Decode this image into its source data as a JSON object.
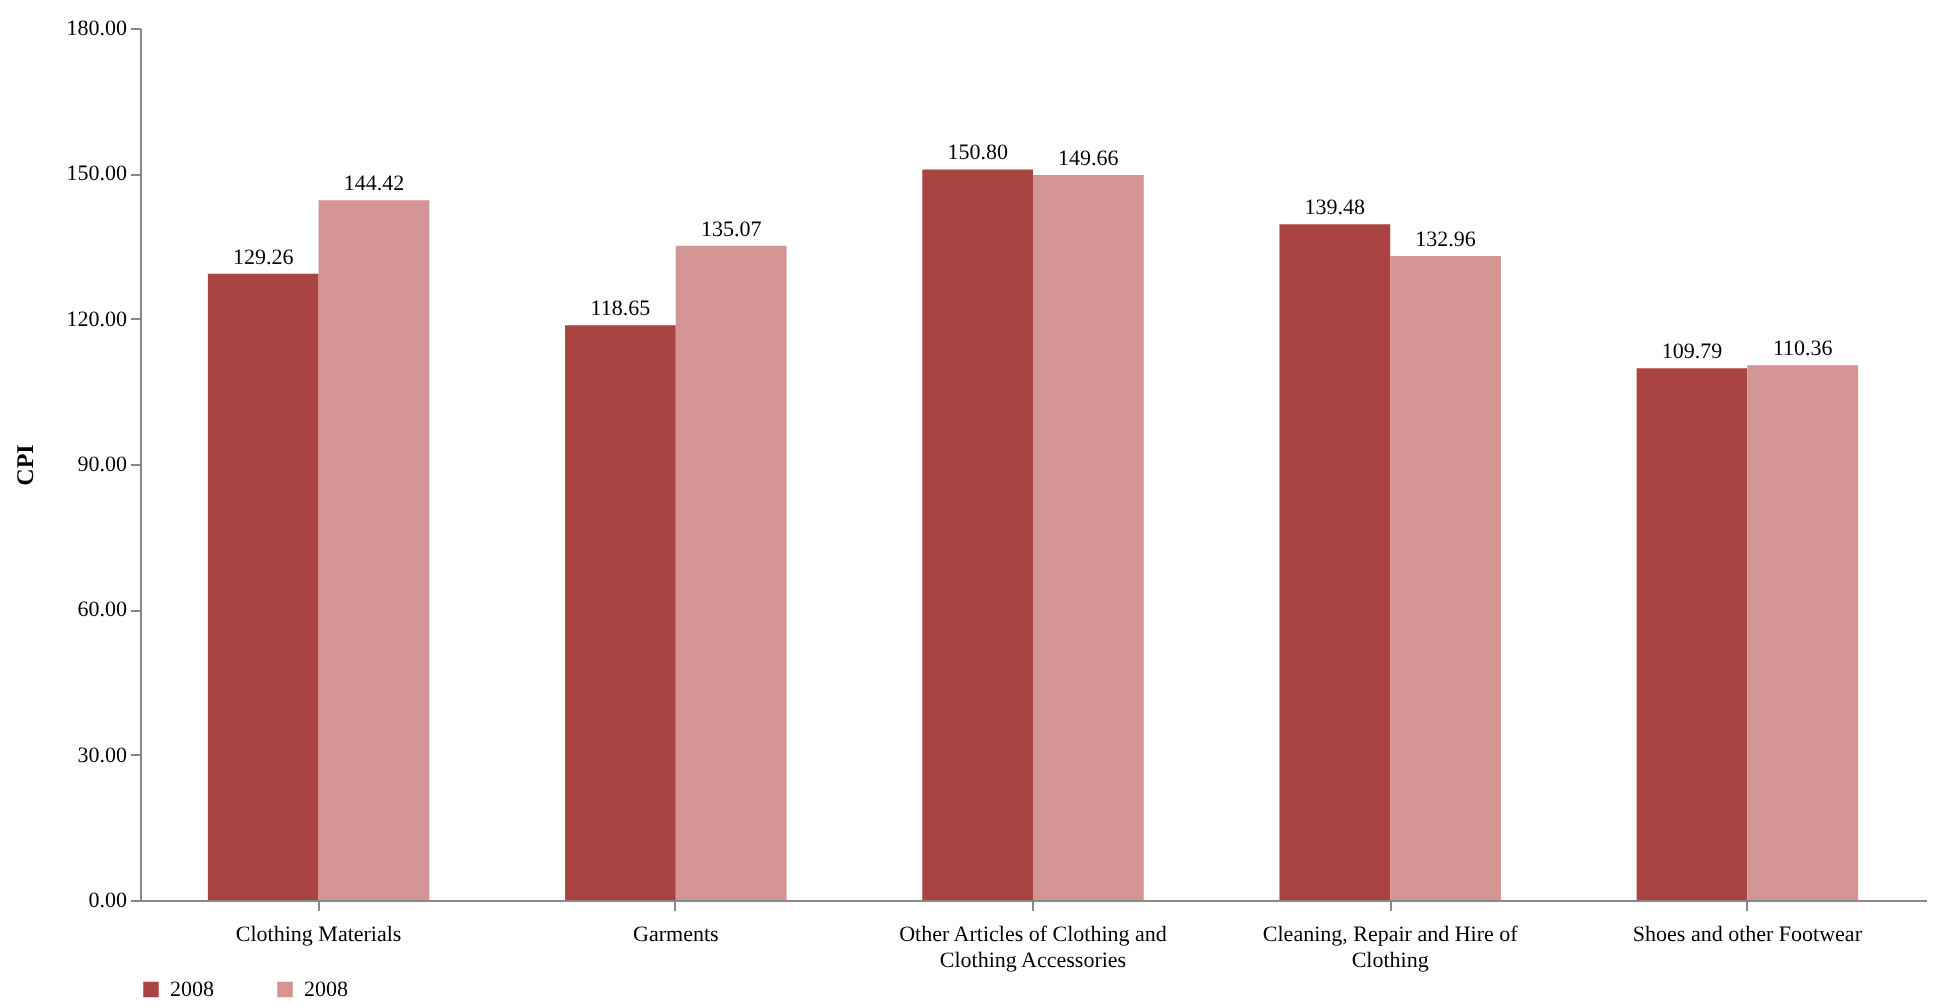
{
  "chart_data": {
    "type": "bar",
    "ylabel": "CPI",
    "categories": [
      "Clothing Materials",
      "Garments",
      "Other Articles of Clothing and Clothing Accessories",
      "Cleaning, Repair and Hire of Clothing",
      "Shoes and other Footwear"
    ],
    "series": [
      {
        "name": "2008",
        "color": "#a94442",
        "values": [
          129.26,
          118.65,
          150.8,
          139.48,
          109.79
        ],
        "value_labels": [
          "129.26",
          "118.65",
          "150.80",
          "139.48",
          "109.79"
        ]
      },
      {
        "name": "2008",
        "color": "#d39494",
        "values": [
          144.42,
          135.07,
          149.66,
          132.96,
          110.36
        ],
        "value_labels": [
          "144.42",
          "135.07",
          "149.66",
          "132.96",
          "110.36"
        ]
      }
    ],
    "ylim": [
      0,
      180
    ],
    "yticks": [
      {
        "value": 0,
        "label": "0.00"
      },
      {
        "value": 30,
        "label": "30.00"
      },
      {
        "value": 60,
        "label": "60.00"
      },
      {
        "value": 90,
        "label": "90.00"
      },
      {
        "value": 120,
        "label": "120.00"
      },
      {
        "value": 150,
        "label": "150.00"
      },
      {
        "value": 180,
        "label": "180.00"
      }
    ],
    "grid": false,
    "legend": "bottom"
  }
}
